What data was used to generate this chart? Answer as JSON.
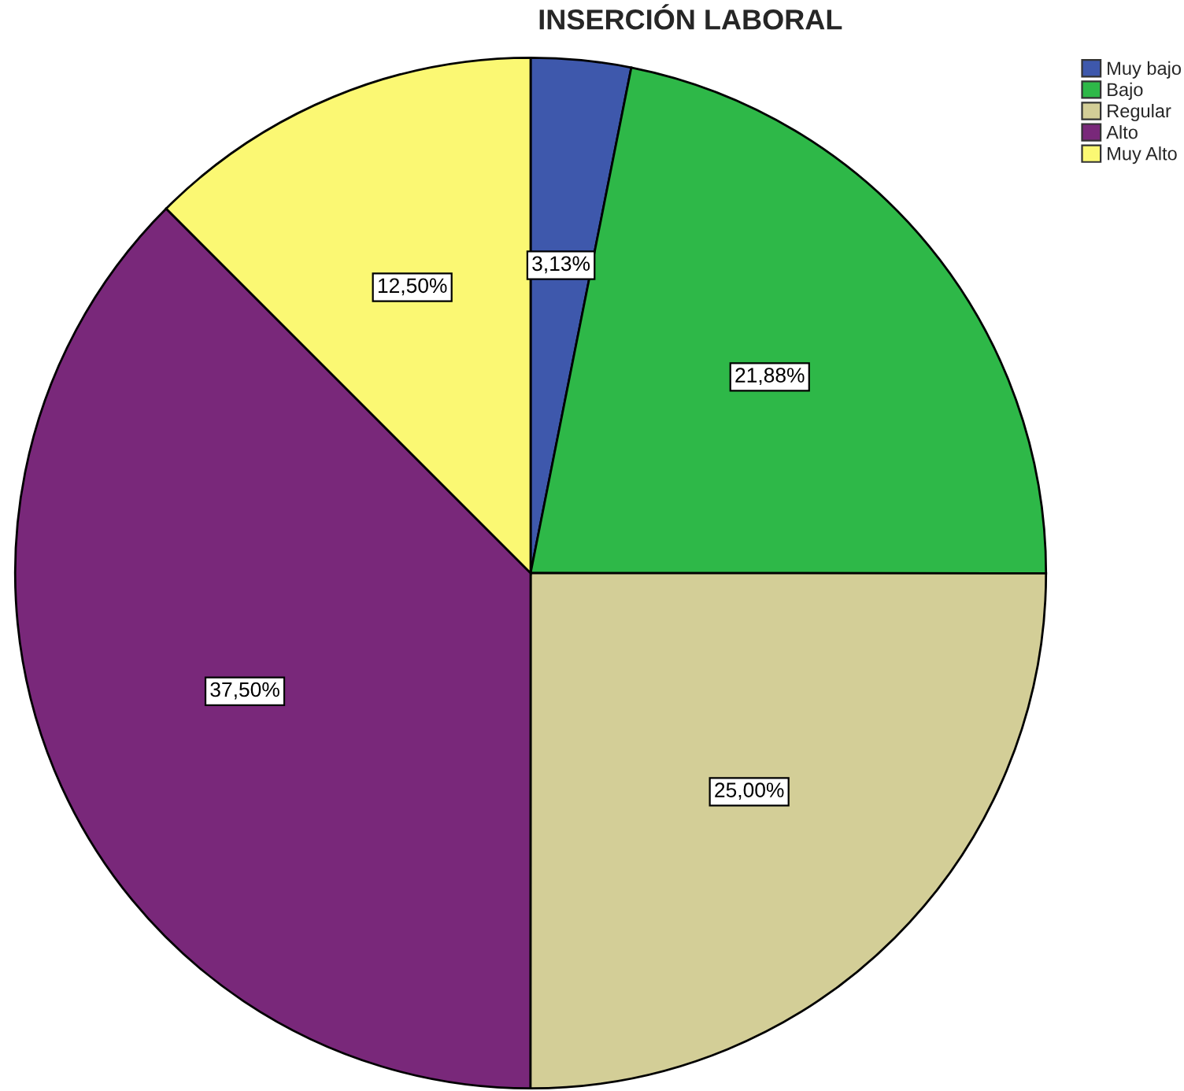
{
  "chart_data": {
    "type": "pie",
    "title": "INSERCIÓN LABORAL",
    "categories": [
      "Muy bajo",
      "Bajo",
      "Regular",
      "Alto",
      "Muy Alto"
    ],
    "values": [
      3.13,
      21.88,
      25.0,
      37.5,
      12.5
    ],
    "colors": [
      "#3e58ac",
      "#2eb848",
      "#d3ce97",
      "#79287a",
      "#fbf873"
    ],
    "value_labels": [
      "3,13%",
      "21,88%",
      "25,00%",
      "37,50%",
      "12,50%"
    ],
    "legend": "top right"
  }
}
